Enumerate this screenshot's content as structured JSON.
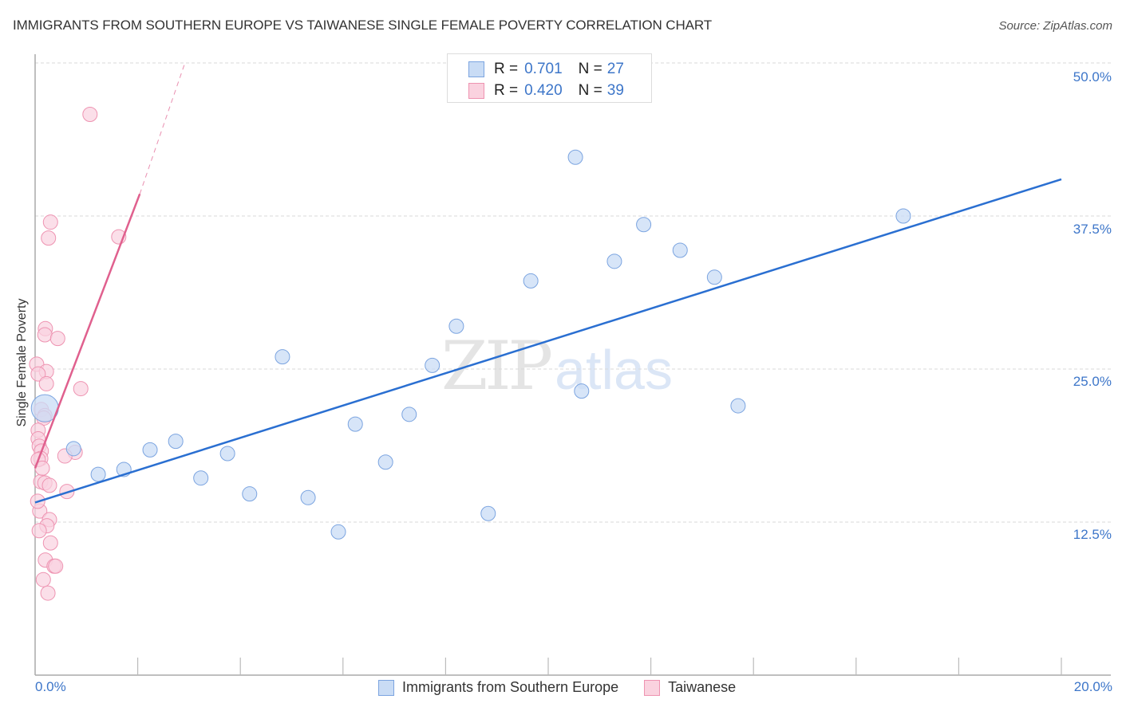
{
  "header": {
    "title": "IMMIGRANTS FROM SOUTHERN EUROPE VS TAIWANESE SINGLE FEMALE POVERTY CORRELATION CHART",
    "source": "Source: ZipAtlas.com"
  },
  "watermark": {
    "zip": "ZIP",
    "atlas": "atlas"
  },
  "axes": {
    "ylabel": "Single Female Poverty",
    "y_ticks": [
      "50.0%",
      "37.5%",
      "25.0%",
      "12.5%"
    ],
    "x_min_label": "0.0%",
    "x_max_label": "20.0%"
  },
  "legend": {
    "rows": [
      {
        "r_label": "R =",
        "r_value": "0.701",
        "n_label": "N =",
        "n_value": "27",
        "color": "#aac8f0"
      },
      {
        "r_label": "R =",
        "r_value": "0.420",
        "n_label": "N =",
        "n_value": "39",
        "color": "#f8bcd0"
      }
    ],
    "series": [
      {
        "label": "Immigrants from Southern Europe",
        "color": "#aac8f0"
      },
      {
        "label": "Taiwanese",
        "color": "#f8bcd0"
      }
    ]
  },
  "colors": {
    "blue_fill": "#c9dcf5",
    "blue_stroke": "#7ba4e0",
    "blue_line": "#2a6fd1",
    "pink_fill": "#fad2df",
    "pink_stroke": "#ee93b1",
    "pink_line": "#e0608e",
    "tick_text": "#3d76c9"
  },
  "chart_data": {
    "type": "scatter",
    "title": "IMMIGRANTS FROM SOUTHERN EUROPE VS TAIWANESE SINGLE FEMALE POVERTY CORRELATION CHART",
    "xlabel": "Immigrants from Southern Europe",
    "ylabel": "Single Female Poverty",
    "xlim": [
      0,
      20
    ],
    "ylim": [
      0,
      50
    ],
    "x_ticks": [
      "0.0%",
      "20.0%"
    ],
    "y_ticks": [
      "12.5%",
      "25.0%",
      "37.5%",
      "50.0%"
    ],
    "grid": "horizontal dashed",
    "legend_position": "top-center (stats) and bottom-center (series)",
    "series": [
      {
        "name": "Immigrants from Southern Europe",
        "color": "#aac8f0",
        "R": 0.701,
        "N": 27,
        "trendline": {
          "x": [
            0,
            20
          ],
          "y": [
            14.1,
            40.5
          ]
        },
        "points": [
          [
            0.19,
            21.8
          ],
          [
            0.75,
            18.5
          ],
          [
            1.23,
            16.4
          ],
          [
            1.73,
            16.8
          ],
          [
            2.24,
            18.4
          ],
          [
            2.74,
            19.1
          ],
          [
            3.23,
            16.1
          ],
          [
            3.75,
            18.1
          ],
          [
            4.18,
            14.8
          ],
          [
            4.82,
            26.0
          ],
          [
            5.32,
            14.5
          ],
          [
            5.91,
            11.7
          ],
          [
            6.24,
            20.5
          ],
          [
            6.83,
            17.4
          ],
          [
            7.29,
            21.3
          ],
          [
            7.74,
            25.3
          ],
          [
            8.21,
            28.5
          ],
          [
            8.83,
            13.2
          ],
          [
            9.66,
            32.2
          ],
          [
            10.53,
            42.3
          ],
          [
            10.65,
            23.2
          ],
          [
            11.29,
            33.8
          ],
          [
            11.86,
            36.8
          ],
          [
            12.57,
            34.7
          ],
          [
            13.24,
            32.5
          ],
          [
            13.7,
            22.0
          ],
          [
            16.92,
            37.5
          ]
        ]
      },
      {
        "name": "Taiwanese",
        "color": "#f8bcd0",
        "R": 0.42,
        "N": 39,
        "trendline": {
          "x": [
            0,
            2.04
          ],
          "y": [
            16.9,
            39.3
          ],
          "dashed_extension": {
            "x": [
              2.04,
              2.92
            ],
            "y": [
              39.3,
              50.0
            ]
          }
        },
        "points": [
          [
            1.07,
            45.8
          ],
          [
            0.3,
            37.0
          ],
          [
            0.26,
            35.7
          ],
          [
            1.63,
            35.8
          ],
          [
            0.2,
            28.3
          ],
          [
            0.19,
            27.8
          ],
          [
            0.44,
            27.5
          ],
          [
            0.03,
            25.4
          ],
          [
            0.22,
            24.8
          ],
          [
            0.06,
            24.6
          ],
          [
            0.22,
            23.8
          ],
          [
            0.89,
            23.4
          ],
          [
            0.12,
            21.7
          ],
          [
            0.19,
            21.2
          ],
          [
            0.17,
            21.0
          ],
          [
            0.06,
            20.0
          ],
          [
            0.06,
            19.3
          ],
          [
            0.08,
            18.7
          ],
          [
            0.12,
            18.3
          ],
          [
            0.11,
            17.7
          ],
          [
            0.78,
            18.2
          ],
          [
            0.58,
            17.9
          ],
          [
            0.06,
            17.6
          ],
          [
            0.11,
            15.8
          ],
          [
            0.19,
            15.7
          ],
          [
            0.28,
            15.5
          ],
          [
            0.62,
            15.0
          ],
          [
            0.09,
            13.4
          ],
          [
            0.28,
            12.7
          ],
          [
            0.23,
            12.2
          ],
          [
            0.08,
            11.8
          ],
          [
            0.3,
            10.8
          ],
          [
            0.2,
            9.4
          ],
          [
            0.37,
            8.9
          ],
          [
            0.4,
            8.9
          ],
          [
            0.16,
            7.8
          ],
          [
            0.25,
            6.7
          ],
          [
            0.14,
            16.9
          ],
          [
            0.05,
            14.2
          ]
        ]
      }
    ]
  }
}
